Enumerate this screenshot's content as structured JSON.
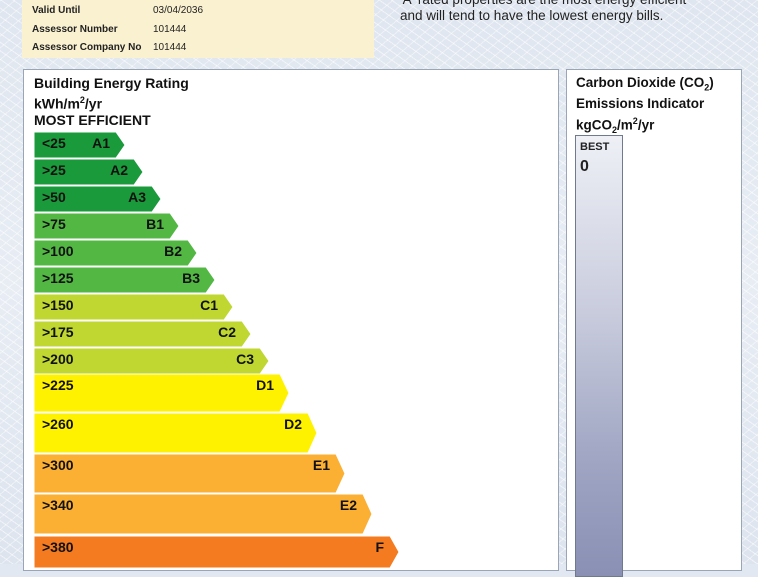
{
  "info": {
    "valid_until_label": "Valid Until",
    "valid_until_value": "03/04/2036",
    "assessor_number_label": "Assessor Number",
    "assessor_number_value": "101444",
    "assessor_company_label": "Assessor Company No",
    "assessor_company_value": "101444"
  },
  "tagline": {
    "line1": "'A' rated properties are the most energy efficient",
    "line2": "and will tend to have the lowest energy bills."
  },
  "ber": {
    "title": "Building Energy Rating",
    "unit_prefix": "kWh/m",
    "unit_sup": "2",
    "unit_suffix": "/yr",
    "top_label": "MOST EFFICIENT",
    "bands": [
      {
        "range": "<25",
        "label": "A1",
        "color": "#1a9a3b"
      },
      {
        "range": ">25",
        "label": "A2",
        "color": "#1a9a3b"
      },
      {
        "range": ">50",
        "label": "A3",
        "color": "#1a9a3b"
      },
      {
        "range": ">75",
        "label": "B1",
        "color": "#52b843"
      },
      {
        "range": ">100",
        "label": "B2",
        "color": "#52b843"
      },
      {
        "range": ">125",
        "label": "B3",
        "color": "#52b843"
      },
      {
        "range": ">150",
        "label": "C1",
        "color": "#bfd730"
      },
      {
        "range": ">175",
        "label": "C2",
        "color": "#bfd730"
      },
      {
        "range": ">200",
        "label": "C3",
        "color": "#bfd730"
      },
      {
        "range": ">225",
        "label": "D1",
        "color": "#fff200"
      },
      {
        "range": ">260",
        "label": "D2",
        "color": "#fff200"
      },
      {
        "range": ">300",
        "label": "E1",
        "color": "#fbb034"
      },
      {
        "range": ">340",
        "label": "E2",
        "color": "#fbb034"
      },
      {
        "range": ">380",
        "label": "F",
        "color": "#f47b20"
      }
    ]
  },
  "co2": {
    "title_a": "Carbon Dioxide (CO",
    "title_sub": "2",
    "title_b": ")",
    "title_line2": "Emissions Indicator",
    "unit_a": "kgCO",
    "unit_sub": "2",
    "unit_b": "/m",
    "unit_sup": "2",
    "unit_c": "/yr",
    "best_label": "BEST",
    "best_value": "0"
  }
}
